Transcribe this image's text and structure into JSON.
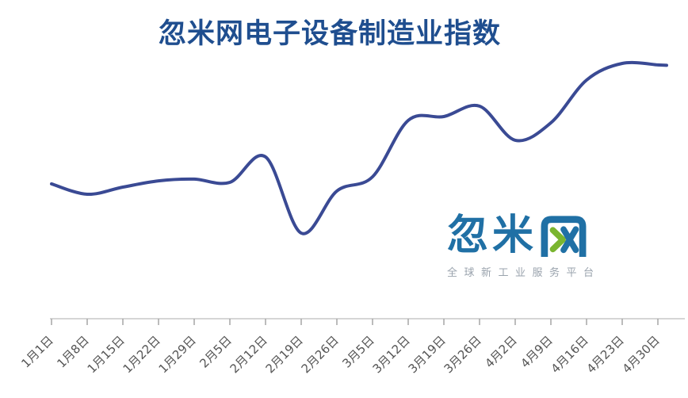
{
  "chart_data": {
    "type": "line",
    "title": "忽米网电子设备制造业指数",
    "categories": [
      "1月1日",
      "1月8日",
      "1月15日",
      "1月22日",
      "1月29日",
      "2月5日",
      "2月12日",
      "2月19日",
      "2月26日",
      "3月5日",
      "3月12日",
      "3月19日",
      "3月26日",
      "4月2日",
      "4月9日",
      "4月16日",
      "4月23日",
      "4月30日"
    ],
    "values": [
      29.0,
      22.9,
      27.1,
      30.8,
      31.8,
      29.9,
      44.9,
      0.0,
      24.8,
      33.2,
      66.4,
      68.7,
      74.8,
      54.7,
      65.0,
      90.2,
      100.0,
      99.1
    ],
    "value_scale_note": "no y-axis is shown in the chart; values are relative estimates on a 0-100 scale (0 = lowest visible point at 2月19日, 100 = highest visible point at 4月23日)",
    "xlabel": "",
    "ylabel": "",
    "grid": false,
    "legend": false,
    "x_tick_rotation_deg": 45,
    "line_color": "#3a4a94",
    "axis_color": "#c9c9c9",
    "tick_color": "#a6a6a6",
    "label_color": "#555555",
    "title_color": "#1f4e8f"
  },
  "watermark": {
    "logo_text": "忽米网",
    "tagline": "全球新工业服务平台",
    "logo_blue": "#2070a5",
    "logo_green": "#7ab52f"
  }
}
